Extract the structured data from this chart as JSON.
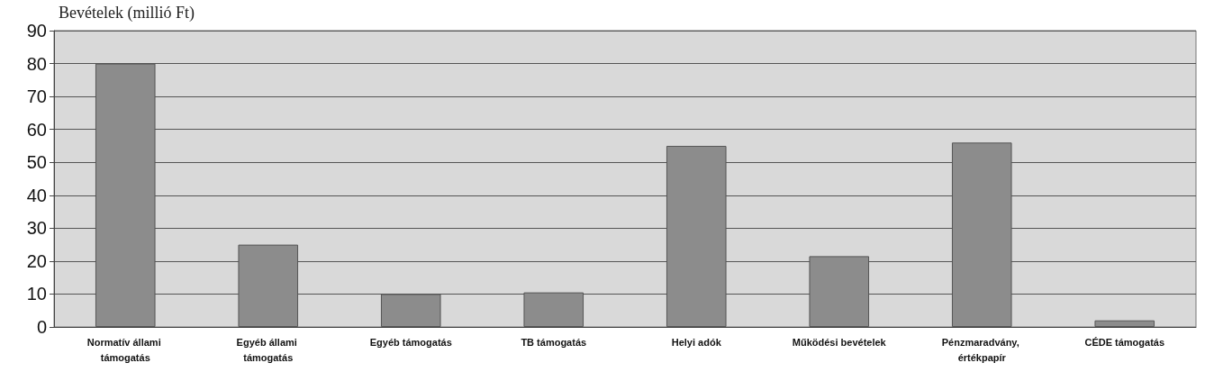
{
  "chart_data": {
    "type": "bar",
    "title": "Bevételek (millió Ft)",
    "categories": [
      "Normatív állami támogatás",
      "Egyéb állami támogatás",
      "Egyéb támogatás",
      "TB támogatás",
      "Helyi adók",
      "Működési bevételek",
      "Pénzmaradvány, értékpapír",
      "CÉDE támogatás"
    ],
    "values": [
      80,
      25,
      10,
      10.5,
      55,
      21.5,
      56,
      2
    ],
    "color": "#8c8c8c",
    "ylim": [
      0,
      90
    ],
    "yticks": [
      0,
      10,
      20,
      30,
      40,
      50,
      60,
      70,
      80,
      90
    ],
    "grid": "y"
  }
}
